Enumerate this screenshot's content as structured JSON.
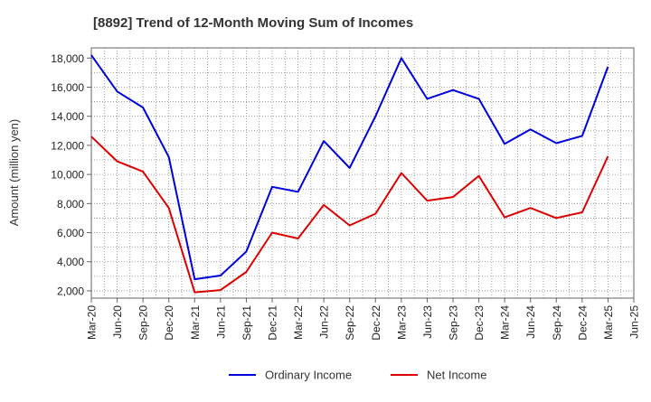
{
  "chart_data": {
    "type": "line",
    "title": "[8892]  Trend of 12-Month Moving Sum of Incomes",
    "xlabel": "",
    "ylabel": "Amount (million yen)",
    "ylim": [
      1500,
      18700
    ],
    "yticks": [
      2000,
      4000,
      6000,
      8000,
      10000,
      12000,
      14000,
      16000,
      18000
    ],
    "ytick_labels": [
      "2,000",
      "4,000",
      "6,000",
      "8,000",
      "10,000",
      "12,000",
      "14,000",
      "16,000",
      "18,000"
    ],
    "categories": [
      "Mar-20",
      "Jun-20",
      "Sep-20",
      "Dec-20",
      "Mar-21",
      "Jun-21",
      "Sep-21",
      "Dec-21",
      "Mar-22",
      "Jun-22",
      "Sep-22",
      "Dec-22",
      "Mar-23",
      "Jun-23",
      "Sep-23",
      "Dec-23",
      "Mar-24",
      "Jun-24",
      "Sep-24",
      "Dec-24",
      "Mar-25",
      "Jun-25"
    ],
    "grid": true,
    "legend_position": "bottom-center",
    "series": [
      {
        "name": "Ordinary Income",
        "color": "#0000dd",
        "values": [
          18200,
          15700,
          14600,
          11200,
          2800,
          3050,
          4700,
          9150,
          8800,
          12300,
          10450,
          14000,
          18000,
          15200,
          15800,
          15200,
          12100,
          13100,
          12150,
          12650,
          17400,
          null
        ]
      },
      {
        "name": "Net Income",
        "color": "#dd0000",
        "values": [
          12600,
          10900,
          10200,
          7700,
          1900,
          2050,
          3300,
          6000,
          5600,
          7900,
          6500,
          7300,
          10100,
          8200,
          8450,
          9900,
          7050,
          7700,
          7000,
          7400,
          11250,
          null
        ]
      }
    ]
  }
}
